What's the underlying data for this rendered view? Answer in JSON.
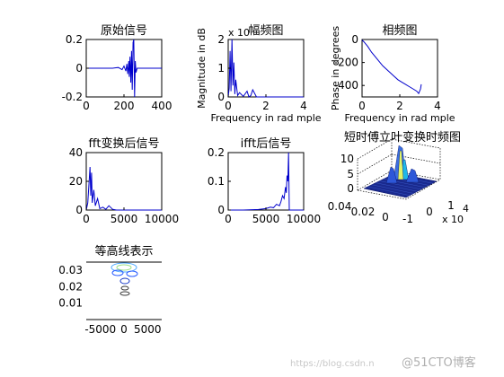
{
  "figure": {
    "watermark_url": "https://blog.csdn.n",
    "watermark_brand": "@51CTO博客"
  },
  "colors": {
    "line": "#0000cc",
    "axes": "#000000",
    "background": "#ffffff"
  },
  "chart_data": [
    {
      "id": "p1",
      "type": "line",
      "title": "原始信号",
      "xlabel": "",
      "ylabel": "",
      "xlim": [
        0,
        400
      ],
      "ylim": [
        -0.2,
        0.2
      ],
      "xticks": [
        "0",
        "200",
        "400"
      ],
      "yticks": [
        "-0.2",
        "0",
        "0.2"
      ],
      "x": [
        0,
        80,
        140,
        170,
        190,
        200,
        210,
        215,
        220,
        225,
        228,
        232,
        236,
        240,
        244,
        248,
        252,
        256,
        260,
        264,
        270,
        280,
        320,
        400
      ],
      "y": [
        0,
        0,
        0,
        0.005,
        -0.01,
        0.015,
        -0.02,
        0.03,
        -0.04,
        0.05,
        -0.06,
        0.08,
        -0.1,
        0.12,
        -0.15,
        0.18,
        0.2,
        -0.2,
        0.05,
        -0.03,
        0,
        0,
        0,
        0
      ]
    },
    {
      "id": "p2",
      "type": "line",
      "title": "幅频图",
      "xlabel": "Frequency in rad mple",
      "ylabel": "Magnitude in dB",
      "exponent": "x 10",
      "xlim": [
        0,
        4
      ],
      "ylim": [
        0,
        2
      ],
      "xticks": [
        "0",
        "2",
        "4"
      ],
      "yticks": [
        "0",
        "1",
        "2"
      ],
      "x": [
        0,
        0.05,
        0.1,
        0.15,
        0.2,
        0.25,
        0.3,
        0.35,
        0.4,
        0.5,
        0.6,
        0.8,
        1.0,
        1.1,
        1.2,
        1.3,
        1.5,
        2,
        3,
        4
      ],
      "y": [
        0,
        0.3,
        1.6,
        0.2,
        2.0,
        0.4,
        1.2,
        0.1,
        0.6,
        0.05,
        0.15,
        0.02,
        0.2,
        0.0,
        0.05,
        0.25,
        0.0,
        0.0,
        0.0,
        0.0
      ]
    },
    {
      "id": "p3",
      "type": "line",
      "title": "相频图",
      "xlabel": "Frequency in rad mple",
      "ylabel": "Phase in degrees",
      "xlim": [
        0,
        4
      ],
      "ylim": [
        -500,
        0
      ],
      "xticks": [
        "0",
        "2",
        "4"
      ],
      "yticks": [
        "0",
        "-200",
        "-400"
      ],
      "x": [
        0,
        0.1,
        0.3,
        0.5,
        0.7,
        0.9,
        1.1,
        1.3,
        1.5,
        1.7,
        1.9,
        2.1,
        2.3,
        2.5,
        2.7,
        2.9,
        3.0,
        3.1,
        3.14
      ],
      "y": [
        -5,
        -20,
        -60,
        -110,
        -150,
        -190,
        -230,
        -260,
        -290,
        -320,
        -350,
        -370,
        -390,
        -410,
        -430,
        -450,
        -470,
        -430,
        -390
      ]
    },
    {
      "id": "p4",
      "type": "line",
      "title": "fft变换后信号",
      "xlabel": "",
      "ylabel": "",
      "xlim": [
        0,
        10000
      ],
      "ylim": [
        0,
        40
      ],
      "xticks": [
        "0",
        "5000",
        "10000"
      ],
      "yticks": [
        "0",
        "20",
        "40"
      ],
      "x": [
        0,
        200,
        400,
        500,
        600,
        700,
        800,
        1000,
        1200,
        1500,
        1800,
        2200,
        2600,
        3000,
        3500,
        4000,
        5000,
        8000,
        10000
      ],
      "y": [
        0,
        5,
        22,
        30,
        10,
        26,
        5,
        14,
        3,
        8,
        1,
        2,
        0.5,
        3,
        0.5,
        0,
        0,
        0,
        0
      ]
    },
    {
      "id": "p5",
      "type": "line",
      "title": "ifft后信号",
      "xlabel": "",
      "ylabel": "",
      "xlim": [
        0,
        10000
      ],
      "ylim": [
        0,
        0.2
      ],
      "xticks": [
        "0",
        "5000",
        "10000"
      ],
      "yticks": [
        "0",
        "0.1",
        "0.2"
      ],
      "x": [
        0,
        2000,
        4000,
        5000,
        5600,
        6000,
        6400,
        6800,
        7000,
        7200,
        7400,
        7600,
        7700,
        7800,
        7900,
        8000,
        8100,
        10000
      ],
      "y": [
        0,
        0,
        0.002,
        0.005,
        0.01,
        0.008,
        0.02,
        0.015,
        0.03,
        0.05,
        0.04,
        0.08,
        0.06,
        0.12,
        0.1,
        0.2,
        0,
        0
      ]
    },
    {
      "id": "p6",
      "type": "heatmap",
      "subtype": "surface3d",
      "title": "短时傅立叶变换时频图",
      "zlim": [
        0,
        10
      ],
      "zticks": [
        "10",
        "5",
        "0"
      ],
      "yticks": [
        "0.04",
        "0.02",
        "0"
      ],
      "xticks": [
        "-1",
        "0",
        "1"
      ],
      "exponent": "x 10",
      "exponent_power": "4"
    },
    {
      "id": "p7",
      "type": "heatmap",
      "subtype": "contour",
      "title": "等高线表示",
      "xlim": [
        -8000,
        8000
      ],
      "ylim": [
        0,
        0.035
      ],
      "xticks": [
        "-5000",
        "0",
        "5000"
      ],
      "yticks": [
        "0.03",
        "0.02",
        "0.01"
      ]
    }
  ]
}
